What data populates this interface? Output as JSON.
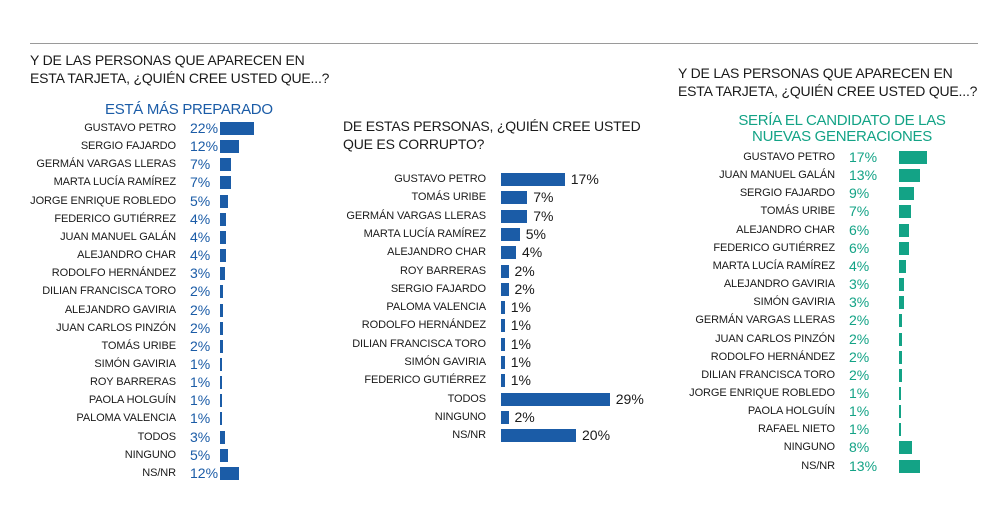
{
  "colors": {
    "blue": "#1b5ca7",
    "green": "#13a386",
    "text": "#1a1a1a"
  },
  "chart_data": [
    {
      "type": "bar",
      "orientation": "horizontal",
      "title": "Y DE LAS PERSONAS QUE APARECEN EN ESTA TARJETA, ¿QUIÉN CREE USTED QUE...?",
      "subtitle": "ESTÁ MÁS PREPARADO",
      "unit": "%",
      "categories": [
        "GUSTAVO PETRO",
        "SERGIO FAJARDO",
        "GERMÁN VARGAS LLERAS",
        "MARTA LUCÍA RAMÍREZ",
        "JORGE ENRIQUE ROBLEDO",
        "FEDERICO GUTIÉRREZ",
        "JUAN MANUEL GALÁN",
        "ALEJANDRO CHAR",
        "RODOLFO HERNÁNDEZ",
        "DILIAN FRANCISCA TORO",
        "ALEJANDRO GAVIRIA",
        "JUAN CARLOS PINZÓN",
        "TOMÁS URIBE",
        "SIMÓN GAVIRIA",
        "ROY BARRERAS",
        "PAOLA HOLGUÍN",
        "PALOMA VALENCIA",
        "TODOS",
        "NINGUNO",
        "NS/NR"
      ],
      "values": [
        22,
        12,
        7,
        7,
        5,
        4,
        4,
        4,
        3,
        2,
        2,
        2,
        2,
        1,
        1,
        1,
        1,
        3,
        5,
        12
      ],
      "labels": [
        "22%",
        "12%",
        "7%",
        "7%",
        "5%",
        "4%",
        "4%",
        "4%",
        "3%",
        "2%",
        "2%",
        "2%",
        "2%",
        "1%",
        "1%",
        "1%",
        "1%",
        "3%",
        "5%",
        "12%"
      ]
    },
    {
      "type": "bar",
      "orientation": "horizontal",
      "title": "DE ESTAS PERSONAS, ¿QUIÉN CREE USTED QUE ES CORRUPTO?",
      "unit": "%",
      "categories": [
        "GUSTAVO PETRO",
        "TOMÁS URIBE",
        "GERMÁN VARGAS LLERAS",
        "MARTA LUCÍA RAMÍREZ",
        "ALEJANDRO CHAR",
        "ROY BARRERAS",
        "SERGIO FAJARDO",
        "PALOMA VALENCIA",
        "RODOLFO HERNÁNDEZ",
        "DILIAN FRANCISCA TORO",
        "SIMÓN GAVIRIA",
        "FEDERICO GUTIÉRREZ",
        "TODOS",
        "NINGUNO",
        "NS/NR"
      ],
      "values": [
        17,
        7,
        7,
        5,
        4,
        2,
        2,
        1,
        1,
        1,
        1,
        1,
        29,
        2,
        20
      ],
      "labels": [
        "17%",
        "7%",
        "7%",
        "5%",
        "4%",
        "2%",
        "2%",
        "1%",
        "1%",
        "1%",
        "1%",
        "1%",
        "29%",
        "2%",
        "20%"
      ]
    },
    {
      "type": "bar",
      "orientation": "horizontal",
      "title": "Y DE LAS PERSONAS QUE APARECEN EN ESTA TARJETA, ¿QUIÉN CREE USTED QUE...?",
      "subtitle": "SERÍA EL CANDIDATO DE LAS NUEVAS GENERACIONES",
      "unit": "%",
      "categories": [
        "GUSTAVO PETRO",
        "JUAN MANUEL GALÁN",
        "SERGIO FAJARDO",
        "TOMÁS URIBE",
        "ALEJANDRO CHAR",
        "FEDERICO GUTIÉRREZ",
        "MARTA LUCÍA RAMÍREZ",
        "ALEJANDRO GAVIRIA",
        "SIMÓN GAVIRIA",
        "GERMÁN VARGAS LLERAS",
        "JUAN CARLOS PINZÓN",
        "RODOLFO HERNÁNDEZ",
        "DILIAN FRANCISCA TORO",
        "JORGE ENRIQUE ROBLEDO",
        "PAOLA HOLGUÍN",
        "RAFAEL NIETO",
        "NINGUNO",
        "NS/NR"
      ],
      "values": [
        17,
        13,
        9,
        7,
        6,
        6,
        4,
        3,
        3,
        2,
        2,
        2,
        2,
        1,
        1,
        1,
        8,
        13
      ],
      "labels": [
        "17%",
        "13%",
        "9%",
        "7%",
        "6%",
        "6%",
        "4%",
        "3%",
        "3%",
        "2%",
        "2%",
        "2%",
        "2%",
        "1%",
        "1%",
        "1%",
        "8%",
        "13%"
      ]
    }
  ]
}
